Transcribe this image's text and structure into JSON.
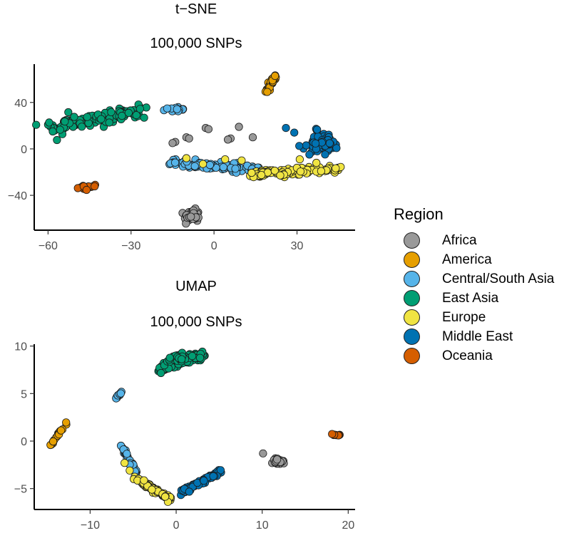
{
  "chart_data": [
    {
      "type": "scatter",
      "title": "t−SNE",
      "subtitle": "100,000 SNPs",
      "xlim": [
        -65,
        51
      ],
      "ylim": [
        -70,
        73
      ],
      "xticks": [
        -60,
        -30,
        0,
        30
      ],
      "yticks": [
        -40,
        0,
        40
      ],
      "xtick_labels": [
        "−60",
        "−30",
        "0",
        "30"
      ],
      "ytick_labels": [
        "−40",
        "0",
        "40"
      ],
      "clusters": [
        {
          "region": "East Asia",
          "shape": "band",
          "from": [
            -60,
            18
          ],
          "to": [
            -27,
            33
          ],
          "width": 6,
          "n": 130
        },
        {
          "region": "Oceania",
          "shape": "band",
          "from": [
            -49,
            -34
          ],
          "to": [
            -43,
            -31
          ],
          "width": 1.5,
          "n": 14
        },
        {
          "region": "Africa",
          "shape": "blob",
          "center": [
            -8,
            -58
          ],
          "spread": [
            2.5,
            5
          ],
          "n": 50
        },
        {
          "region": "Africa",
          "shape": "points",
          "points": [
            [
              -14,
              6
            ],
            [
              -10,
              10
            ],
            [
              -9,
              9
            ],
            [
              -3,
              18
            ],
            [
              -2,
              17
            ],
            [
              6,
              9
            ],
            [
              5,
              8
            ],
            [
              9,
              19
            ],
            [
              14,
              10
            ],
            [
              -15,
              5
            ]
          ]
        },
        {
          "region": "Central/South Asia",
          "shape": "blob",
          "center": [
            -14,
            34
          ],
          "spread": [
            3,
            1.5
          ],
          "n": 18
        },
        {
          "region": "Central/South Asia",
          "shape": "band",
          "from": [
            -15,
            -12
          ],
          "to": [
            16,
            -17
          ],
          "width": 3,
          "n": 95
        },
        {
          "region": "America",
          "shape": "band",
          "from": [
            19,
            48
          ],
          "to": [
            22,
            63
          ],
          "width": 1.2,
          "n": 30
        },
        {
          "region": "Europe",
          "shape": "band",
          "from": [
            13,
            -22
          ],
          "to": [
            46,
            -17
          ],
          "width": 3.5,
          "n": 110
        },
        {
          "region": "Europe",
          "shape": "points",
          "points": [
            [
              -10,
              -8
            ],
            [
              4,
              -9
            ],
            [
              10,
              -10
            ],
            [
              31,
              -9
            ],
            [
              37,
              -12
            ],
            [
              -4,
              -13
            ]
          ]
        },
        {
          "region": "Middle East",
          "shape": "blob",
          "center": [
            39,
            5
          ],
          "spread": [
            5,
            7
          ],
          "n": 110
        },
        {
          "region": "Middle East",
          "shape": "points",
          "points": [
            [
              26,
              18
            ],
            [
              29,
              14
            ]
          ]
        }
      ]
    },
    {
      "type": "scatter",
      "title": "UMAP",
      "subtitle": "100,000 SNPs",
      "xlim": [
        -16.5,
        20.8
      ],
      "ylim": [
        -7.2,
        10.2
      ],
      "xticks": [
        -10,
        0,
        10,
        20
      ],
      "yticks": [
        -5,
        0,
        5,
        10
      ],
      "xtick_labels": [
        "−10",
        "0",
        "10",
        "20"
      ],
      "ytick_labels": [
        "−5",
        "0",
        "5",
        "10"
      ],
      "clusters": [
        {
          "region": "East Asia",
          "shape": "band",
          "from": [
            -2,
            7.5
          ],
          "to": [
            3.3,
            9.1
          ],
          "width": 0.35,
          "n": 110
        },
        {
          "region": "East Asia",
          "shape": "blob",
          "center": [
            0.5,
            8.7
          ],
          "spread": [
            1.2,
            0.35
          ],
          "n": 60
        },
        {
          "region": "Central/South Asia",
          "shape": "band",
          "from": [
            -7,
            4.5
          ],
          "to": [
            -6.3,
            5.2
          ],
          "width": 0.1,
          "n": 10
        },
        {
          "region": "America",
          "shape": "band",
          "from": [
            -14.7,
            -0.6
          ],
          "to": [
            -12.7,
            2
          ],
          "width": 0.12,
          "n": 18
        },
        {
          "region": "Central/South Asia",
          "shape": "band",
          "from": [
            -6.5,
            -0.3
          ],
          "to": [
            -4.5,
            -3.5
          ],
          "width": 0.25,
          "n": 40
        },
        {
          "region": "Europe",
          "shape": "band",
          "from": [
            -5,
            -3.8
          ],
          "to": [
            -0.5,
            -6.2
          ],
          "width": 0.3,
          "n": 80
        },
        {
          "region": "Europe",
          "shape": "points",
          "points": [
            [
              -6.0,
              -2.3
            ],
            [
              -5.4,
              -3.1
            ]
          ]
        },
        {
          "region": "Middle East",
          "shape": "band",
          "from": [
            0.5,
            -5.5
          ],
          "to": [
            5.3,
            -3.1
          ],
          "width": 0.3,
          "n": 70
        },
        {
          "region": "Africa",
          "shape": "blob",
          "center": [
            11.8,
            -2.1
          ],
          "spread": [
            0.6,
            0.35
          ],
          "n": 30
        },
        {
          "region": "Africa",
          "shape": "points",
          "points": [
            [
              10.1,
              -1.3
            ]
          ]
        },
        {
          "region": "Oceania",
          "shape": "band",
          "from": [
            18,
            0.7
          ],
          "to": [
            19.2,
            0.6
          ],
          "width": 0.05,
          "n": 8
        }
      ]
    }
  ],
  "legend": {
    "title": "Region",
    "items": [
      {
        "label": "Africa",
        "color": "#999999"
      },
      {
        "label": "America",
        "color": "#E69F00"
      },
      {
        "label": "Central/South Asia",
        "color": "#56B4E9"
      },
      {
        "label": "East Asia",
        "color": "#009E73"
      },
      {
        "label": "Europe",
        "color": "#F0E442"
      },
      {
        "label": "Middle East",
        "color": "#0072B2"
      },
      {
        "label": "Oceania",
        "color": "#D55E00"
      }
    ]
  }
}
